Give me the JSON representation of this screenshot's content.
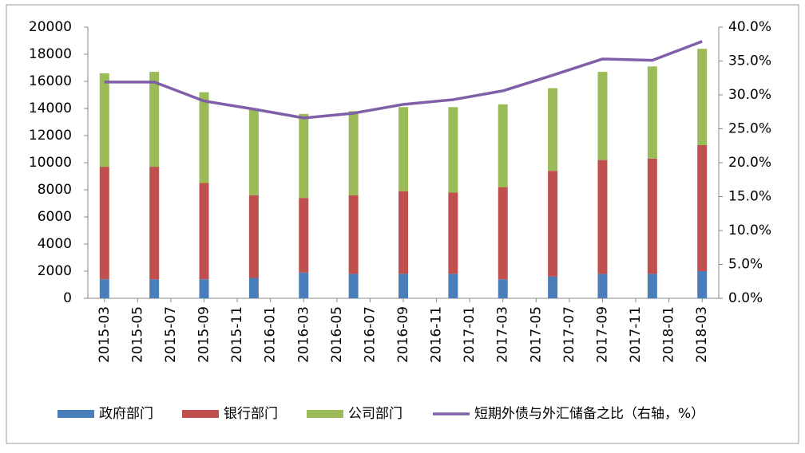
{
  "chart_data": {
    "type": "bar",
    "stacked": true,
    "x": [
      "2015-03",
      "2015-06",
      "2015-09",
      "2015-12",
      "2016-03",
      "2016-06",
      "2016-09",
      "2016-12",
      "2017-03",
      "2017-06",
      "2017-09",
      "2017-12",
      "2018-03"
    ],
    "xlim": [
      "2015-02",
      "2018-04"
    ],
    "xticks": [
      "2015-03",
      "2015-05",
      "2015-07",
      "2015-09",
      "2015-11",
      "2016-01",
      "2016-03",
      "2016-05",
      "2016-07",
      "2016-09",
      "2016-11",
      "2017-01",
      "2017-03",
      "2017-05",
      "2017-07",
      "2017-09",
      "2017-11",
      "2018-01",
      "2018-03"
    ],
    "ylim": [
      0,
      20000
    ],
    "yticks": [
      0,
      2000,
      4000,
      6000,
      8000,
      10000,
      12000,
      14000,
      16000,
      18000,
      20000
    ],
    "y2lim": [
      0,
      40
    ],
    "y2ticks": [
      {
        "value": 0,
        "label": "0.0%"
      },
      {
        "value": 5,
        "label": "5.0%"
      },
      {
        "value": 10,
        "label": "10.0%"
      },
      {
        "value": 15,
        "label": "15.0%"
      },
      {
        "value": 20,
        "label": "20.0%"
      },
      {
        "value": 25,
        "label": "25.0%"
      },
      {
        "value": 30,
        "label": "30.0%"
      },
      {
        "value": 35,
        "label": "35.0%"
      },
      {
        "value": 40,
        "label": "40.0%"
      }
    ],
    "grid": false,
    "legend": "bottom",
    "series": [
      {
        "name": "政府部门",
        "type": "bar",
        "color": "#4a7ebb",
        "values": [
          1400,
          1400,
          1400,
          1500,
          1900,
          1800,
          1800,
          1800,
          1400,
          1600,
          1800,
          1800,
          2000
        ]
      },
      {
        "name": "银行部门",
        "type": "bar",
        "color": "#c0504d",
        "values": [
          8300,
          8300,
          7100,
          6100,
          5500,
          5800,
          6100,
          6000,
          6800,
          7800,
          8400,
          8500,
          9300
        ]
      },
      {
        "name": "公司部门",
        "type": "bar",
        "color": "#9bbb59",
        "values": [
          6900,
          7000,
          6700,
          6300,
          6200,
          6200,
          6200,
          6300,
          6100,
          6100,
          6500,
          6800,
          7100
        ]
      },
      {
        "name": "短期外债与外汇储备之比（右轴，%）",
        "type": "line",
        "axis": "y2",
        "color": "#7f5fa8",
        "values": [
          31.9,
          31.9,
          29.1,
          27.9,
          26.6,
          27.3,
          28.6,
          29.3,
          30.6,
          32.9,
          35.3,
          35.1,
          37.9
        ]
      }
    ]
  }
}
